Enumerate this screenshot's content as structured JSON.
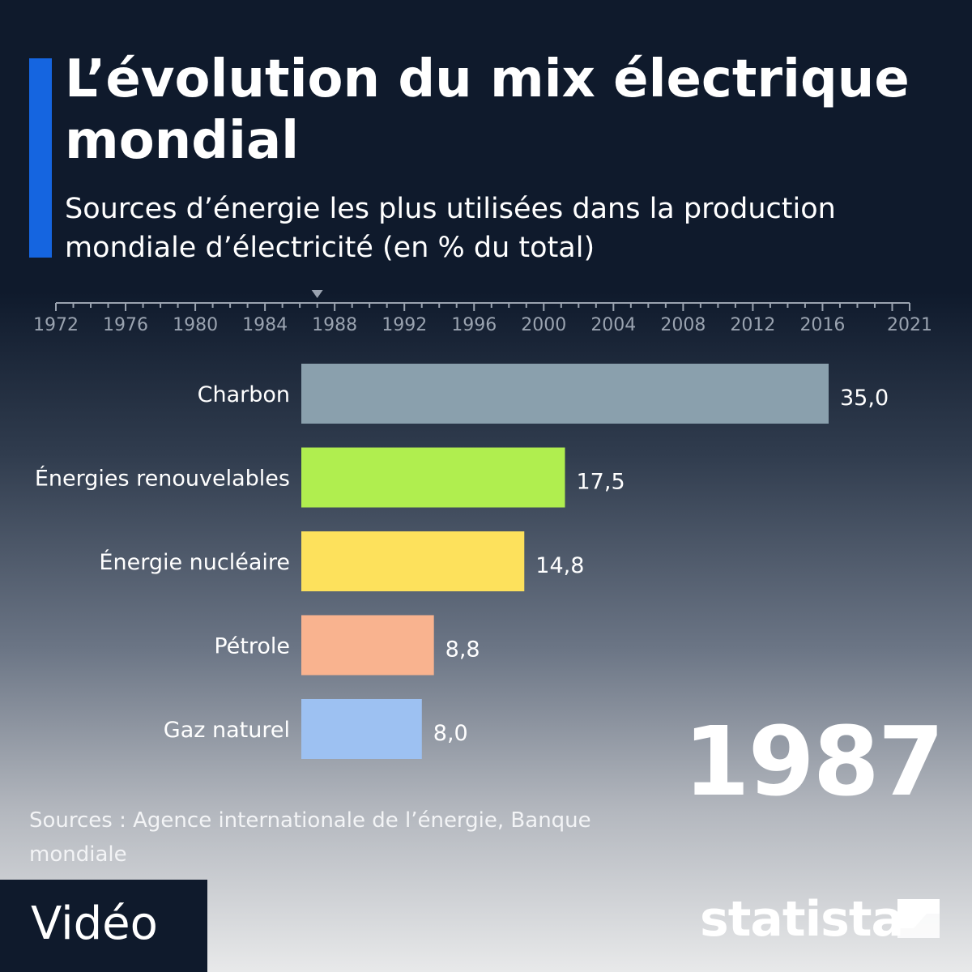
{
  "header": {
    "title": "L’évolution du mix électrique mondial",
    "subtitle": "Sources d’énergie les plus utilisées dans la production mondiale d’électricité (en % du total)"
  },
  "timeline": {
    "tick_labels": [
      "1972",
      "1976",
      "1980",
      "1984",
      "1988",
      "1992",
      "1996",
      "2000",
      "2004",
      "2008",
      "2012",
      "2016",
      "2021"
    ],
    "start_year": 1972,
    "end_year": 2021,
    "current_year": 1987
  },
  "current_year_label": "1987",
  "chart_data": {
    "type": "bar",
    "orientation": "horizontal",
    "categories": [
      "Charbon",
      "Énergies renouvelables",
      "Énergie nucléaire",
      "Pétrole",
      "Gaz naturel"
    ],
    "values": [
      35.0,
      17.5,
      14.8,
      8.8,
      8.0
    ],
    "value_labels": [
      "35,0",
      "17,5",
      "14,8",
      "8,8",
      "8,0"
    ],
    "colors": [
      "#8aa0ad",
      "#b0ee4f",
      "#fde15c",
      "#f9b38f",
      "#9dc1f2"
    ],
    "title": "",
    "xlabel": "",
    "ylabel": "",
    "grid": false
  },
  "sources": "Sources : Agence internationale de l’énergie, Banque mondiale",
  "badge": {
    "label": "Vidéo"
  },
  "brand": {
    "name": "statista"
  },
  "style": {
    "accent": "#1565e0",
    "background_top": "#0f1a2c"
  }
}
